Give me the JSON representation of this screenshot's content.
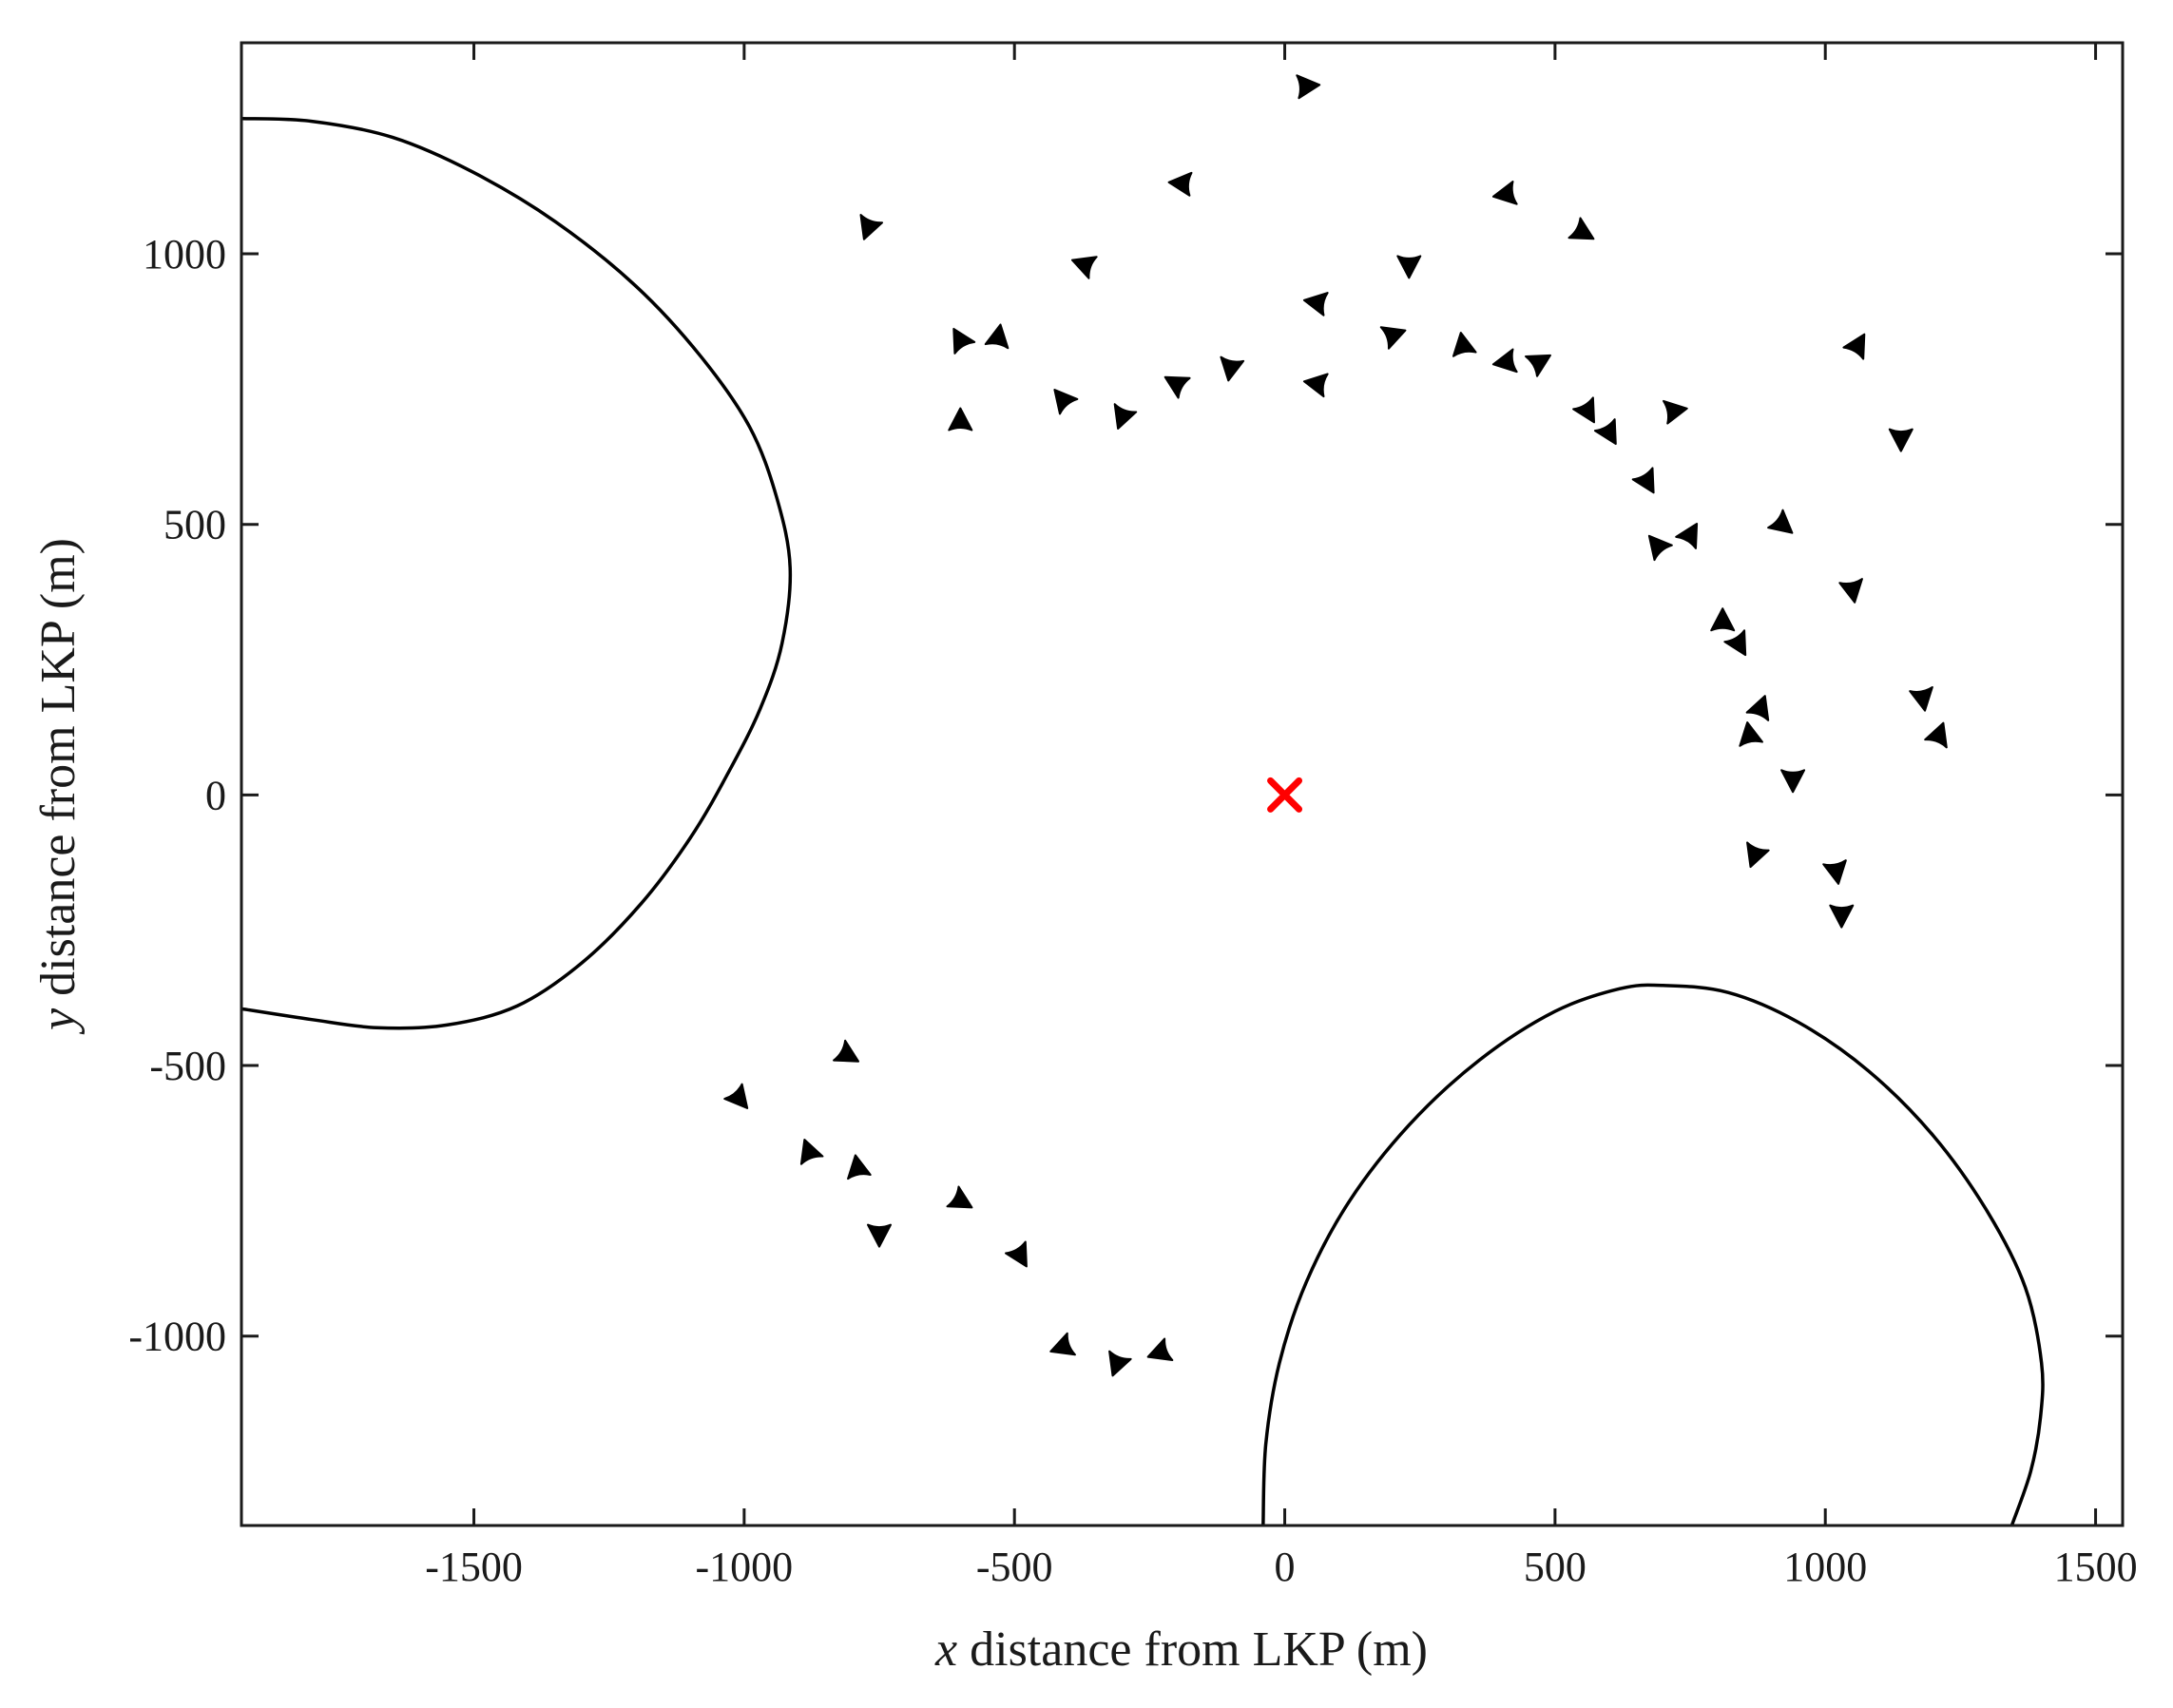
{
  "chart_data": {
    "type": "scatter",
    "title": "",
    "xlabel": {
      "var": "x",
      "text": " distance from LKP (m)"
    },
    "ylabel": {
      "var": "y",
      "text": " distance from LKP (m)"
    },
    "xlim": [
      -1930,
      1550
    ],
    "ylim": [
      -1350,
      1390
    ],
    "xticks": [
      -1500,
      -1000,
      -500,
      0,
      500,
      1000,
      1500
    ],
    "xtick_labels": [
      "-1500",
      "-1000",
      "-500",
      "0",
      "500",
      "1000",
      "1500"
    ],
    "yticks": [
      -1000,
      -500,
      0,
      500,
      1000
    ],
    "ytick_labels": [
      "-1000",
      "-500",
      "0",
      "500",
      "1000"
    ],
    "grid": false,
    "colors": {
      "axis": "#1a1a1a",
      "marker": "#000000",
      "lkp": "#ff0000",
      "boundary": "#000000"
    },
    "lkp": {
      "x": 0,
      "y": 0,
      "marker": "x"
    },
    "agents": [
      {
        "x": 40,
        "y": 1310,
        "dir": 5
      },
      {
        "x": -190,
        "y": 1130,
        "dir": 175
      },
      {
        "x": 410,
        "y": 1110,
        "dir": 190
      },
      {
        "x": -770,
        "y": 1050,
        "dir": 250
      },
      {
        "x": 550,
        "y": 1040,
        "dir": 330
      },
      {
        "x": -370,
        "y": 980,
        "dir": 160
      },
      {
        "x": 230,
        "y": 980,
        "dir": 270
      },
      {
        "x": 60,
        "y": 910,
        "dir": 170
      },
      {
        "x": 200,
        "y": 850,
        "dir": 20
      },
      {
        "x": -600,
        "y": 840,
        "dir": 120
      },
      {
        "x": -530,
        "y": 845,
        "dir": 80
      },
      {
        "x": 330,
        "y": 830,
        "dir": 100
      },
      {
        "x": 1060,
        "y": 830,
        "dir": 60
      },
      {
        "x": -100,
        "y": 790,
        "dir": 260
      },
      {
        "x": 410,
        "y": 800,
        "dir": 190
      },
      {
        "x": 470,
        "y": 800,
        "dir": 30
      },
      {
        "x": -200,
        "y": 760,
        "dir": 150
      },
      {
        "x": 60,
        "y": 760,
        "dir": 170
      },
      {
        "x": -410,
        "y": 730,
        "dir": 130
      },
      {
        "x": 560,
        "y": 710,
        "dir": 300
      },
      {
        "x": 720,
        "y": 710,
        "dir": 10
      },
      {
        "x": -600,
        "y": 690,
        "dir": 90
      },
      {
        "x": -300,
        "y": 700,
        "dir": 250
      },
      {
        "x": 600,
        "y": 670,
        "dir": 300
      },
      {
        "x": 1140,
        "y": 660,
        "dir": 270
      },
      {
        "x": 670,
        "y": 580,
        "dir": 300
      },
      {
        "x": 920,
        "y": 500,
        "dir": 320
      },
      {
        "x": 750,
        "y": 480,
        "dir": 60
      },
      {
        "x": 690,
        "y": 460,
        "dir": 130
      },
      {
        "x": 1050,
        "y": 380,
        "dir": 280
      },
      {
        "x": 810,
        "y": 320,
        "dir": 90
      },
      {
        "x": 840,
        "y": 280,
        "dir": 300
      },
      {
        "x": 1180,
        "y": 180,
        "dir": 280
      },
      {
        "x": 880,
        "y": 160,
        "dir": 70
      },
      {
        "x": 860,
        "y": 110,
        "dir": 100
      },
      {
        "x": 1210,
        "y": 110,
        "dir": 70
      },
      {
        "x": 940,
        "y": 30,
        "dir": 270
      },
      {
        "x": 870,
        "y": -110,
        "dir": 250
      },
      {
        "x": 1020,
        "y": -140,
        "dir": 280
      },
      {
        "x": 1030,
        "y": -220,
        "dir": 270
      },
      {
        "x": -810,
        "y": -480,
        "dir": 330
      },
      {
        "x": -1010,
        "y": -560,
        "dir": 310
      },
      {
        "x": -880,
        "y": -660,
        "dir": 110
      },
      {
        "x": -790,
        "y": -690,
        "dir": 100
      },
      {
        "x": -600,
        "y": -750,
        "dir": 330
      },
      {
        "x": -750,
        "y": -810,
        "dir": 270
      },
      {
        "x": -490,
        "y": -850,
        "dir": 300
      },
      {
        "x": -410,
        "y": -1020,
        "dir": 200
      },
      {
        "x": -310,
        "y": -1050,
        "dir": 250
      },
      {
        "x": -230,
        "y": -1030,
        "dir": 200
      }
    ],
    "boundaries": [
      {
        "name": "",
        "points": [
          [
            -1930,
            1250
          ],
          [
            -1800,
            1245
          ],
          [
            -1650,
            1215
          ],
          [
            -1500,
            1150
          ],
          [
            -1350,
            1060
          ],
          [
            -1200,
            940
          ],
          [
            -1080,
            810
          ],
          [
            -990,
            680
          ],
          [
            -940,
            550
          ],
          [
            -915,
            420
          ],
          [
            -930,
            280
          ],
          [
            -970,
            160
          ],
          [
            -1030,
            40
          ],
          [
            -1100,
            -80
          ],
          [
            -1190,
            -200
          ],
          [
            -1300,
            -310
          ],
          [
            -1420,
            -390
          ],
          [
            -1550,
            -425
          ],
          [
            -1680,
            -430
          ],
          [
            -1800,
            -415
          ],
          [
            -1930,
            -395
          ]
        ]
      },
      {
        "name": "",
        "points": [
          [
            -40,
            -1350
          ],
          [
            -35,
            -1200
          ],
          [
            -10,
            -1050
          ],
          [
            40,
            -900
          ],
          [
            120,
            -750
          ],
          [
            230,
            -610
          ],
          [
            360,
            -490
          ],
          [
            500,
            -400
          ],
          [
            620,
            -358
          ],
          [
            700,
            -352
          ],
          [
            820,
            -365
          ],
          [
            950,
            -420
          ],
          [
            1080,
            -510
          ],
          [
            1200,
            -630
          ],
          [
            1300,
            -770
          ],
          [
            1370,
            -910
          ],
          [
            1400,
            -1050
          ],
          [
            1398,
            -1150
          ],
          [
            1380,
            -1250
          ],
          [
            1345,
            -1350
          ]
        ]
      }
    ]
  }
}
